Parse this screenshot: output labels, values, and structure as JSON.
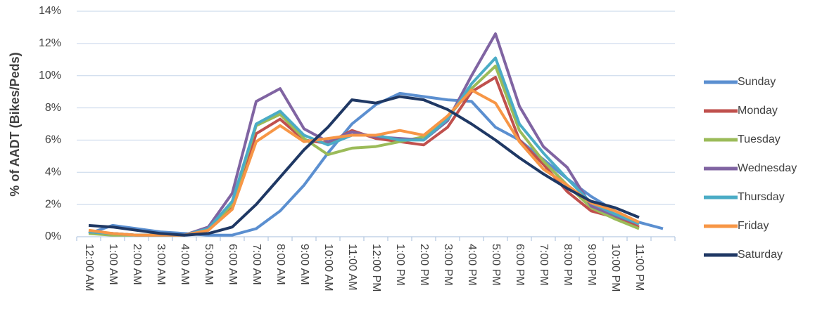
{
  "chart_data": {
    "type": "line",
    "y_label": "% of AADT (Bikes/Peds)",
    "categories": [
      "12:00 AM",
      "1:00 AM",
      "2:00 AM",
      "3:00 AM",
      "4:00 AM",
      "5:00 AM",
      "6:00 AM",
      "7:00 AM",
      "8:00 AM",
      "9:00 AM",
      "10:00 AM",
      "11:00 AM",
      "12:00 PM",
      "1:00 PM",
      "2:00 PM",
      "3:00 PM",
      "4:00 PM",
      "5:00 PM",
      "6:00 PM",
      "7:00 PM",
      "8:00 PM",
      "9:00 PM",
      "10:00 PM",
      "11:00 PM",
      null
    ],
    "series": [
      {
        "name": "Sunday",
        "color": "#5b8fd0",
        "values": [
          0.2,
          0.7,
          0.5,
          0.3,
          0.2,
          0.1,
          0.1,
          0.5,
          1.6,
          3.2,
          5.2,
          7.0,
          8.2,
          8.9,
          8.7,
          8.5,
          8.4,
          6.8,
          6.0,
          4.8,
          3.6,
          2.5,
          1.6,
          0.9,
          0.5
        ]
      },
      {
        "name": "Monday",
        "color": "#c0504d",
        "values": [
          0.3,
          0.2,
          0.1,
          0.1,
          0.1,
          0.4,
          1.8,
          6.4,
          7.3,
          6.0,
          5.8,
          6.6,
          6.1,
          5.9,
          5.7,
          6.8,
          9.0,
          9.9,
          6.0,
          4.5,
          2.8,
          1.6,
          1.2,
          0.6,
          null
        ]
      },
      {
        "name": "Tuesday",
        "color": "#9bbb59",
        "values": [
          0.2,
          0.1,
          0.1,
          0.1,
          0.1,
          0.5,
          2.0,
          6.9,
          7.6,
          6.1,
          5.1,
          5.5,
          5.6,
          5.9,
          6.2,
          7.4,
          9.2,
          10.6,
          6.6,
          4.7,
          3.2,
          1.8,
          1.1,
          0.5,
          null
        ]
      },
      {
        "name": "Wednesday",
        "color": "#8064a2",
        "values": [
          0.3,
          0.2,
          0.1,
          0.1,
          0.1,
          0.6,
          2.7,
          8.4,
          9.2,
          6.7,
          5.9,
          6.5,
          6.2,
          6.1,
          6.0,
          7.2,
          10.0,
          12.6,
          8.1,
          5.6,
          4.3,
          1.9,
          1.3,
          0.8,
          null
        ]
      },
      {
        "name": "Thursday",
        "color": "#4bacc6",
        "values": [
          0.3,
          0.2,
          0.1,
          0.1,
          0.1,
          0.5,
          2.2,
          7.0,
          7.8,
          6.3,
          5.7,
          6.3,
          6.3,
          6.0,
          6.0,
          7.3,
          9.5,
          11.1,
          7.0,
          5.2,
          3.6,
          2.1,
          1.4,
          0.8,
          null
        ]
      },
      {
        "name": "Friday",
        "color": "#f79646",
        "values": [
          0.4,
          0.2,
          0.1,
          0.1,
          0.1,
          0.4,
          1.7,
          5.9,
          6.9,
          5.9,
          6.1,
          6.3,
          6.3,
          6.6,
          6.3,
          7.5,
          9.1,
          8.3,
          5.9,
          4.2,
          3.2,
          2.1,
          1.6,
          0.9,
          null
        ]
      },
      {
        "name": "Saturday",
        "color": "#1f3864",
        "values": [
          0.7,
          0.6,
          0.4,
          0.2,
          0.1,
          0.2,
          0.6,
          2.0,
          3.7,
          5.4,
          6.8,
          8.5,
          8.3,
          8.7,
          8.5,
          7.9,
          7.0,
          6.0,
          4.9,
          3.9,
          3.0,
          2.2,
          1.8,
          1.2,
          null
        ]
      }
    ],
    "ylim": [
      0,
      14
    ],
    "yticks": [
      {
        "value": 0,
        "label": "0%"
      },
      {
        "value": 2,
        "label": "2%"
      },
      {
        "value": 4,
        "label": "4%"
      },
      {
        "value": 6,
        "label": "6%"
      },
      {
        "value": 8,
        "label": "8%"
      },
      {
        "value": 10,
        "label": "10%"
      },
      {
        "value": 12,
        "label": "12%"
      },
      {
        "value": 14,
        "label": "14%"
      }
    ],
    "grid": true,
    "legend": "right"
  }
}
